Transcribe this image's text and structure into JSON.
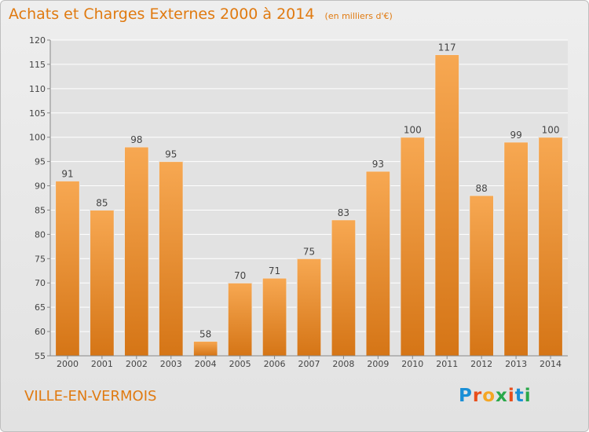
{
  "title": "Achats et Charges Externes 2000 à 2014",
  "subtitle": "(en milliers d'€)",
  "town": "VILLE-EN-VERMOIS",
  "logo": "Proxiti",
  "colors": {
    "bar": "#f5a04a",
    "bar_dark": "#d57516",
    "title": "#e07a10",
    "grid": "#ffffff"
  },
  "chart_data": {
    "type": "bar",
    "categories": [
      "2000",
      "2001",
      "2002",
      "2003",
      "2004",
      "2005",
      "2006",
      "2007",
      "2008",
      "2009",
      "2010",
      "2011",
      "2012",
      "2013",
      "2014"
    ],
    "values": [
      91,
      85,
      98,
      95,
      58,
      70,
      71,
      75,
      83,
      93,
      100,
      117,
      88,
      99,
      100
    ],
    "data_labels": [
      "91",
      "85",
      "98",
      "95",
      "58",
      "70",
      "71",
      "75",
      "83",
      "93",
      "100",
      "117",
      "88",
      "99",
      "100"
    ],
    "ylim": [
      55,
      120
    ],
    "yticks": [
      55,
      60,
      65,
      70,
      75,
      80,
      85,
      90,
      95,
      100,
      105,
      110,
      115,
      120
    ],
    "grid": true,
    "legend": "none"
  }
}
